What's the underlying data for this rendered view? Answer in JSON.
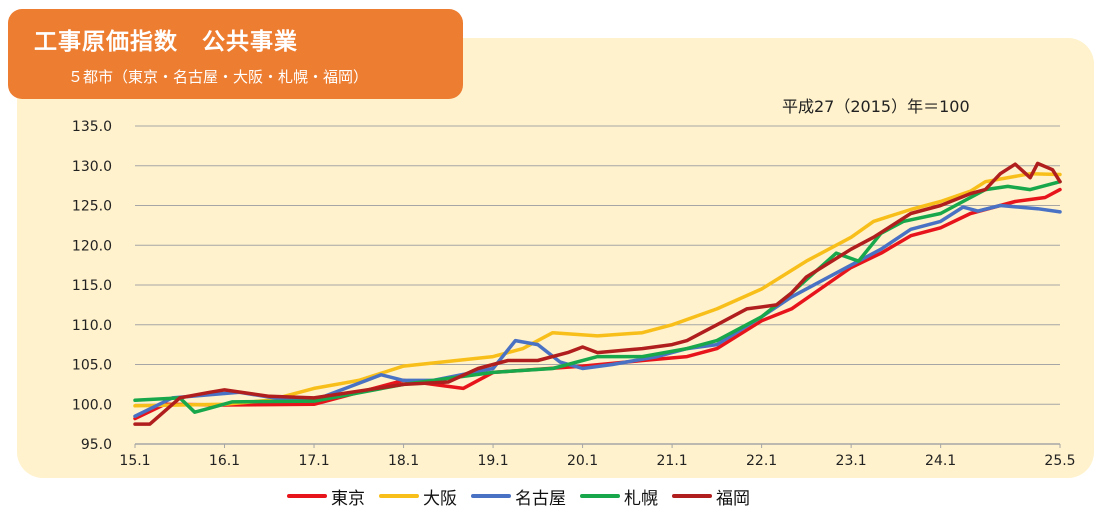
{
  "header": {
    "title": "工事原価指数　公共事業",
    "subtitle": "５都市（東京・名古屋・大阪・札幌・福岡）"
  },
  "note": "平成27（2015）年＝100",
  "colors": {
    "panel_bg": "#fff2cc",
    "header_bg": "#ed7d31",
    "gridline": "#a6a6a6"
  },
  "chart_data": {
    "type": "line",
    "title": "工事原価指数　公共事業",
    "subtitle": "５都市（東京・名古屋・大阪・札幌・福岡）",
    "note": "平成27（2015）年＝100",
    "x_unit": "month_index_from_15.1",
    "x_ticks": [
      "15.1",
      "16.1",
      "17.1",
      "18.1",
      "19.1",
      "20.1",
      "21.1",
      "22.1",
      "23.1",
      "24.1",
      "25.5"
    ],
    "x_tick_positions": [
      0,
      12,
      24,
      36,
      48,
      60,
      72,
      84,
      96,
      108,
      124
    ],
    "ylim": [
      95,
      135
    ],
    "y_ticks": [
      "95.0",
      "100.0",
      "105.0",
      "110.0",
      "115.0",
      "120.0",
      "125.0",
      "130.0",
      "135.0"
    ],
    "grid": true,
    "legend_position": "bottom",
    "series": [
      {
        "name": "東京",
        "color": "#e8141c",
        "points": [
          [
            0,
            98.2
          ],
          [
            4,
            100.0
          ],
          [
            12,
            99.9
          ],
          [
            24,
            100.0
          ],
          [
            36,
            103.0
          ],
          [
            44,
            102.0
          ],
          [
            48,
            104.0
          ],
          [
            60,
            104.8
          ],
          [
            68,
            105.5
          ],
          [
            74,
            106.0
          ],
          [
            78,
            107.0
          ],
          [
            84,
            110.5
          ],
          [
            88,
            112.0
          ],
          [
            96,
            117.2
          ],
          [
            100,
            119.0
          ],
          [
            104,
            121.2
          ],
          [
            108,
            122.2
          ],
          [
            112,
            124.0
          ],
          [
            118,
            125.5
          ],
          [
            122,
            126.0
          ],
          [
            124,
            127.0
          ]
        ]
      },
      {
        "name": "大阪",
        "color": "#f8bf1a",
        "points": [
          [
            0,
            99.8
          ],
          [
            12,
            100.0
          ],
          [
            18,
            100.5
          ],
          [
            24,
            102.0
          ],
          [
            30,
            103.0
          ],
          [
            36,
            104.8
          ],
          [
            48,
            106.0
          ],
          [
            52,
            107.0
          ],
          [
            56,
            109.0
          ],
          [
            62,
            108.6
          ],
          [
            68,
            109.0
          ],
          [
            72,
            110.0
          ],
          [
            78,
            112.0
          ],
          [
            84,
            114.5
          ],
          [
            90,
            118.0
          ],
          [
            96,
            121.0
          ],
          [
            99,
            123.0
          ],
          [
            104,
            124.5
          ],
          [
            108,
            125.5
          ],
          [
            112,
            126.8
          ],
          [
            114,
            128.0
          ],
          [
            120,
            129.0
          ],
          [
            124,
            128.9
          ]
        ]
      },
      {
        "name": "名古屋",
        "color": "#4a72c4",
        "points": [
          [
            0,
            98.5
          ],
          [
            5,
            100.8
          ],
          [
            14,
            101.5
          ],
          [
            20,
            100.6
          ],
          [
            24,
            100.5
          ],
          [
            33,
            103.7
          ],
          [
            36,
            103.0
          ],
          [
            40,
            103.0
          ],
          [
            48,
            104.5
          ],
          [
            51,
            108.0
          ],
          [
            54,
            107.5
          ],
          [
            57,
            105.3
          ],
          [
            60,
            104.5
          ],
          [
            64,
            105.0
          ],
          [
            70,
            106.0
          ],
          [
            74,
            107.0
          ],
          [
            78,
            107.5
          ],
          [
            84,
            111.0
          ],
          [
            88,
            113.5
          ],
          [
            96,
            117.5
          ],
          [
            100,
            119.5
          ],
          [
            104,
            122.0
          ],
          [
            108,
            123.0
          ],
          [
            111,
            124.8
          ],
          [
            113,
            124.3
          ],
          [
            116,
            125.0
          ],
          [
            121,
            124.6
          ],
          [
            124,
            124.2
          ]
        ]
      },
      {
        "name": "札幌",
        "color": "#18a84b",
        "points": [
          [
            0,
            100.5
          ],
          [
            6,
            100.8
          ],
          [
            8,
            99.0
          ],
          [
            10,
            99.5
          ],
          [
            13,
            100.3
          ],
          [
            24,
            100.4
          ],
          [
            36,
            102.5
          ],
          [
            48,
            104.0
          ],
          [
            56,
            104.5
          ],
          [
            62,
            106.0
          ],
          [
            68,
            106.0
          ],
          [
            74,
            107.0
          ],
          [
            78,
            108.0
          ],
          [
            84,
            111.0
          ],
          [
            88,
            114.0
          ],
          [
            94,
            119.0
          ],
          [
            97,
            118.0
          ],
          [
            100,
            121.5
          ],
          [
            103,
            123.0
          ],
          [
            108,
            124.0
          ],
          [
            111,
            125.5
          ],
          [
            114,
            127.0
          ],
          [
            117,
            127.4
          ],
          [
            120,
            127.0
          ],
          [
            124,
            128.0
          ]
        ]
      },
      {
        "name": "福岡",
        "color": "#b01e1e",
        "points": [
          [
            0,
            97.5
          ],
          [
            2,
            97.5
          ],
          [
            6,
            100.8
          ],
          [
            10,
            101.5
          ],
          [
            12,
            101.8
          ],
          [
            18,
            101.0
          ],
          [
            24,
            100.8
          ],
          [
            36,
            102.5
          ],
          [
            42,
            102.8
          ],
          [
            46,
            104.5
          ],
          [
            50,
            105.5
          ],
          [
            54,
            105.5
          ],
          [
            58,
            106.5
          ],
          [
            60,
            107.2
          ],
          [
            62,
            106.5
          ],
          [
            68,
            107.0
          ],
          [
            72,
            107.5
          ],
          [
            74,
            108.0
          ],
          [
            76,
            109.0
          ],
          [
            78,
            110.0
          ],
          [
            82,
            112.0
          ],
          [
            86,
            112.5
          ],
          [
            88,
            114.0
          ],
          [
            90,
            116.0
          ],
          [
            96,
            119.5
          ],
          [
            99,
            121.0
          ],
          [
            104,
            124.0
          ],
          [
            108,
            125.0
          ],
          [
            112,
            126.5
          ],
          [
            114,
            127.0
          ],
          [
            116,
            129.0
          ],
          [
            118,
            130.2
          ],
          [
            120,
            128.5
          ],
          [
            121,
            130.3
          ],
          [
            123,
            129.5
          ],
          [
            124,
            128.0
          ]
        ]
      }
    ]
  }
}
